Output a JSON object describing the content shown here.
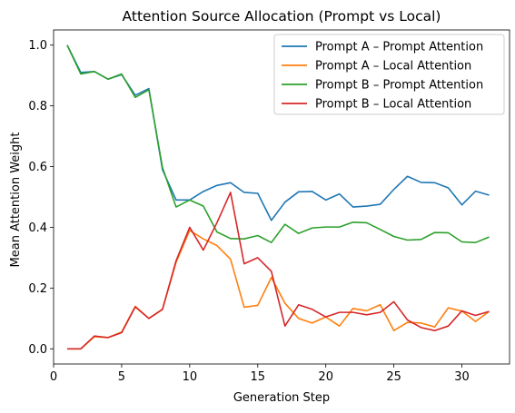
{
  "chart_data": {
    "type": "line",
    "title": "Attention Source Allocation (Prompt vs Local)",
    "xlabel": "Generation Step",
    "ylabel": "Mean Attention Weight",
    "xlim": [
      0,
      33.5
    ],
    "ylim": [
      -0.05,
      1.05
    ],
    "xticks": [
      0,
      5,
      10,
      15,
      20,
      25,
      30
    ],
    "yticks": [
      0.0,
      0.2,
      0.4,
      0.6,
      0.8,
      1.0
    ],
    "ytick_labels": [
      "0.0",
      "0.2",
      "0.4",
      "0.6",
      "0.8",
      "1.0"
    ],
    "grid": false,
    "legend_position": "top-right",
    "x": [
      1,
      2,
      3,
      4,
      5,
      6,
      7,
      8,
      9,
      10,
      11,
      12,
      13,
      14,
      15,
      16,
      17,
      18,
      19,
      20,
      21,
      22,
      23,
      24,
      25,
      26,
      27,
      28,
      29,
      30,
      31,
      32
    ],
    "series": [
      {
        "name": "Prompt A – Prompt Attention",
        "color": "#1f77b4",
        "values": [
          1.0,
          0.91,
          0.913,
          0.888,
          0.903,
          0.835,
          0.857,
          0.59,
          0.49,
          0.49,
          0.518,
          0.538,
          0.547,
          0.515,
          0.512,
          0.423,
          0.483,
          0.517,
          0.518,
          0.49,
          0.51,
          0.467,
          0.47,
          0.476,
          0.525,
          0.568,
          0.548,
          0.547,
          0.53,
          0.474,
          0.519,
          0.506
        ]
      },
      {
        "name": "Prompt A – Local Attention",
        "color": "#ff7f0e",
        "values": [
          0.0,
          0.0,
          0.04,
          0.037,
          0.055,
          0.14,
          0.1,
          0.13,
          0.285,
          0.39,
          0.362,
          0.34,
          0.295,
          0.137,
          0.143,
          0.235,
          0.15,
          0.1,
          0.085,
          0.105,
          0.075,
          0.133,
          0.125,
          0.145,
          0.06,
          0.087,
          0.085,
          0.072,
          0.135,
          0.124,
          0.09,
          0.123
        ]
      },
      {
        "name": "Prompt B – Prompt Attention",
        "color": "#2ca02c",
        "values": [
          1.0,
          0.905,
          0.913,
          0.888,
          0.905,
          0.828,
          0.853,
          0.597,
          0.467,
          0.49,
          0.47,
          0.385,
          0.363,
          0.362,
          0.373,
          0.35,
          0.41,
          0.38,
          0.398,
          0.401,
          0.401,
          0.417,
          0.415,
          0.393,
          0.37,
          0.358,
          0.36,
          0.383,
          0.382,
          0.352,
          0.35,
          0.368
        ]
      },
      {
        "name": "Prompt B – Local Attention",
        "color": "#d62728",
        "values": [
          0.0,
          0.0,
          0.042,
          0.037,
          0.053,
          0.138,
          0.1,
          0.13,
          0.29,
          0.4,
          0.325,
          0.415,
          0.515,
          0.28,
          0.3,
          0.255,
          0.075,
          0.145,
          0.13,
          0.105,
          0.12,
          0.12,
          0.112,
          0.12,
          0.155,
          0.095,
          0.07,
          0.06,
          0.075,
          0.125,
          0.11,
          0.123
        ]
      }
    ]
  }
}
